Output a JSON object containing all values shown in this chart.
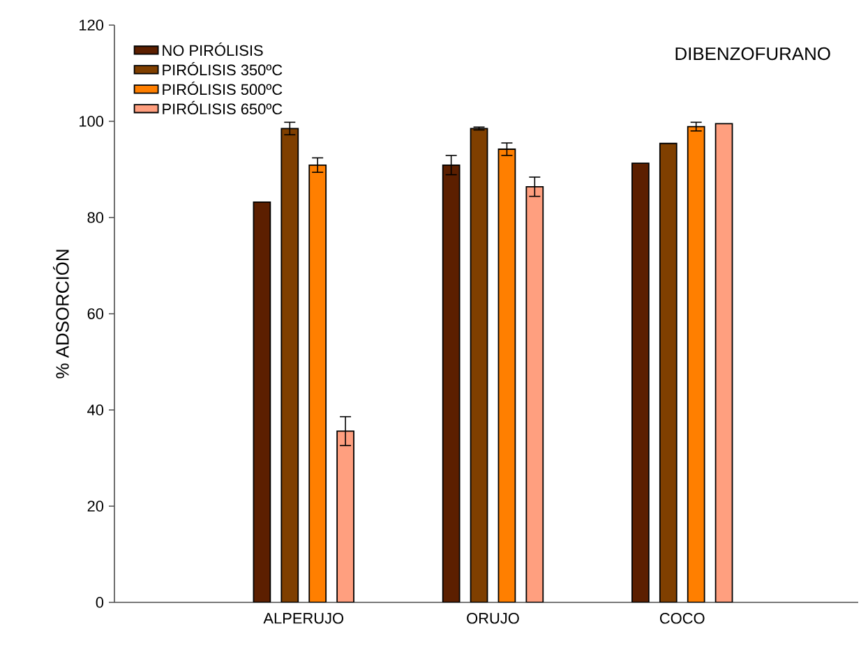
{
  "chart_data": {
    "type": "bar",
    "ylabel": "% ADSORCIÓN",
    "annotations": [
      "DIBENZOFURANO"
    ],
    "categories": [
      "ALPERUJO",
      "ORUJO",
      "COCO"
    ],
    "series": [
      {
        "name": "NO PIRÓLISIS",
        "color": "#5c1f00",
        "values": [
          83.2,
          90.9,
          91.3
        ],
        "errors": [
          null,
          2,
          null
        ]
      },
      {
        "name": "PIRÓLISIS  350ºC",
        "color": "#7f3f00",
        "values": [
          98.5,
          98.5,
          95.4
        ],
        "errors": [
          1.3,
          0.3,
          null
        ]
      },
      {
        "name": "PIRÓLISIS  500ºC",
        "color": "#ff7f00",
        "values": [
          90.9,
          94.2,
          98.9
        ],
        "errors": [
          1.5,
          1.3,
          0.9
        ]
      },
      {
        "name": "PIRÓLISIS  650ºC",
        "color": "#ff9f7f",
        "values": [
          35.6,
          86.4,
          99.5
        ],
        "errors": [
          3,
          2,
          null
        ]
      }
    ],
    "ylim": [
      0,
      120
    ],
    "yticks": [
      0,
      20,
      40,
      60,
      80,
      100,
      120
    ],
    "grid": false,
    "legend": "top left"
  }
}
